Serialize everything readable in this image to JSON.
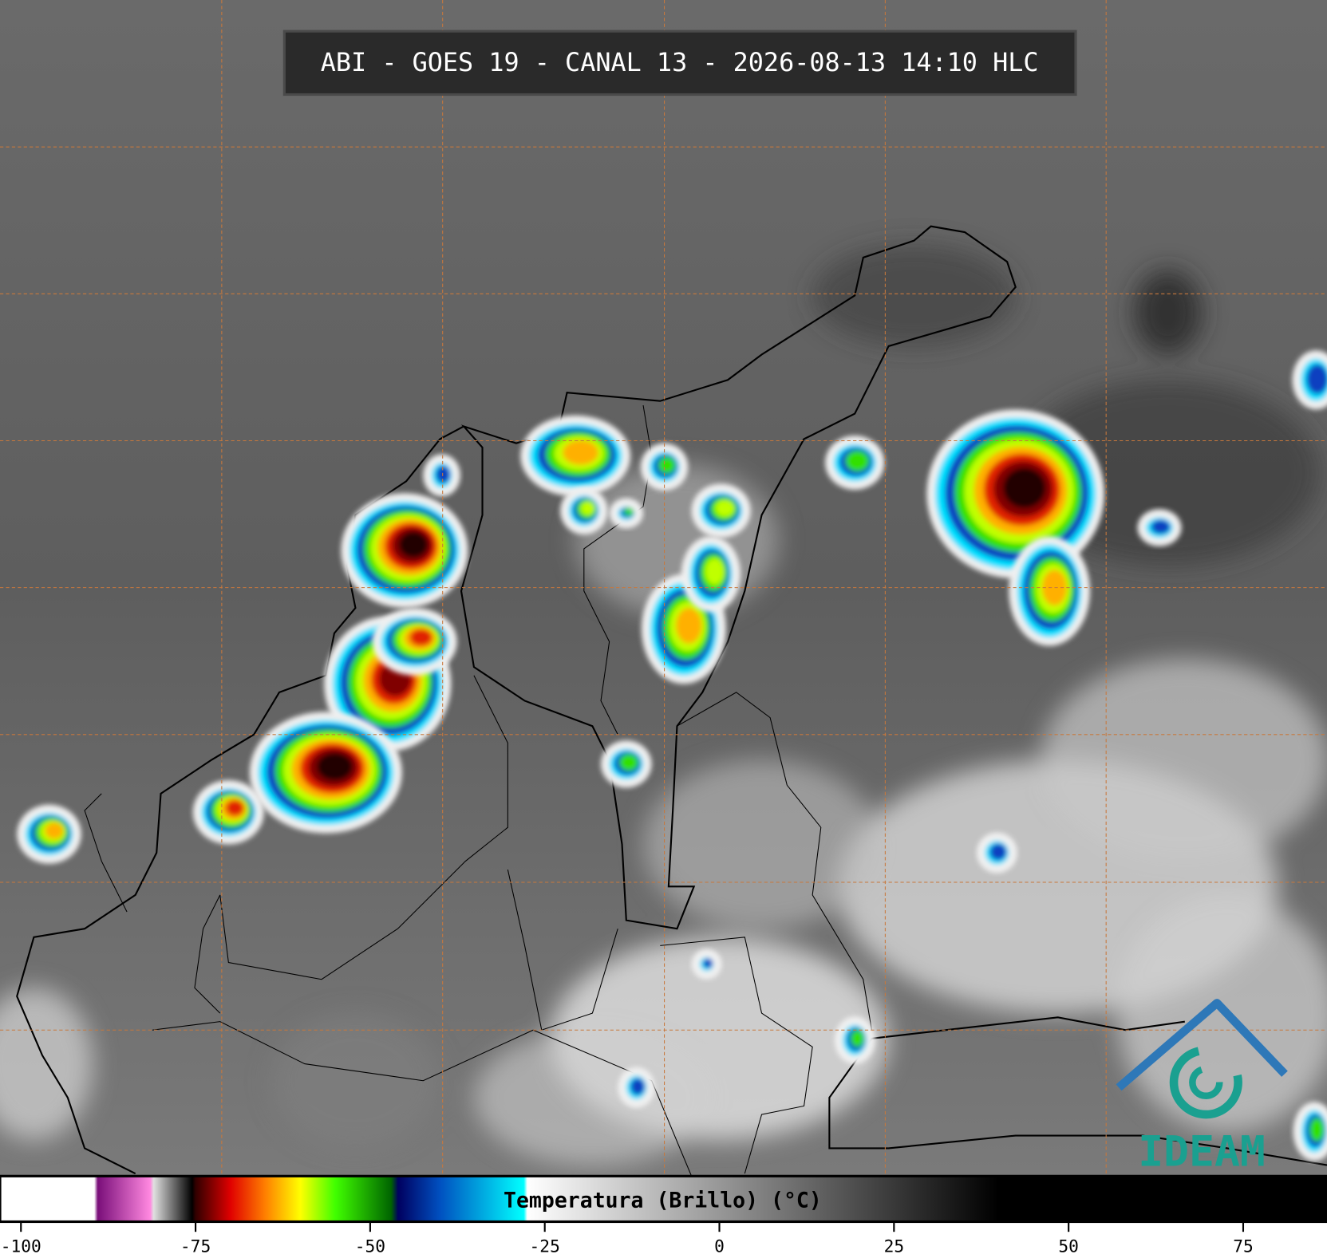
{
  "header": {
    "title": "ABI - GOES 19 - CANAL 13 - 2026-08-13 14:10 HLC"
  },
  "logo": {
    "text": "IDEAM"
  },
  "colorbar": {
    "label": "Temperatura (Brillo) (°C)",
    "range": [
      -103,
      87
    ],
    "ticks": [
      -100,
      -75,
      -50,
      -25,
      0,
      25,
      50,
      75
    ],
    "stops": [
      {
        "value": -103,
        "color": "#ffffff"
      },
      {
        "value": -89.5,
        "color": "#ffffff"
      },
      {
        "value": -89,
        "color": "#7a0f7a"
      },
      {
        "value": -81.5,
        "color": "#ff88e0"
      },
      {
        "value": -81,
        "color": "#e0e0e0"
      },
      {
        "value": -75.5,
        "color": "#000000"
      },
      {
        "value": -75,
        "color": "#300000"
      },
      {
        "value": -70,
        "color": "#e00000"
      },
      {
        "value": -65,
        "color": "#ff8000"
      },
      {
        "value": -60,
        "color": "#ffff00"
      },
      {
        "value": -55,
        "color": "#40ff00"
      },
      {
        "value": -47,
        "color": "#006400"
      },
      {
        "value": -46,
        "color": "#000060"
      },
      {
        "value": -40,
        "color": "#0050c0"
      },
      {
        "value": -28,
        "color": "#00ffff"
      },
      {
        "value": -27.5,
        "color": "#ffffff"
      },
      {
        "value": 40,
        "color": "#000000"
      },
      {
        "value": 87,
        "color": "#000000"
      }
    ]
  }
}
